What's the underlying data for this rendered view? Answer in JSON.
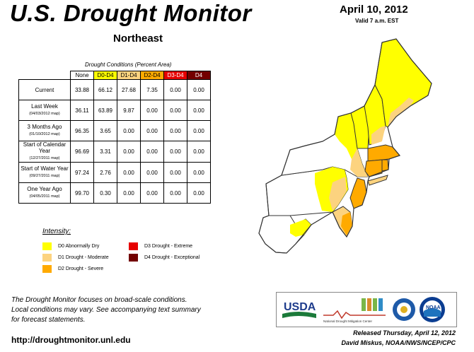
{
  "header": {
    "title": "U.S. Drought Monitor",
    "region": "Northeast",
    "date": "April 10, 2012",
    "valid": "Valid 7 a.m. EST"
  },
  "table": {
    "caption": "Drought Conditions (Percent Area)",
    "columns": [
      "None",
      "D0-D4",
      "D1-D4",
      "D2-D4",
      "D3-D4",
      "D4"
    ],
    "column_colors": [
      "#ffffff",
      "#ffff00",
      "#fcd37f",
      "#ffaa00",
      "#e60000",
      "#730000"
    ],
    "rows": [
      {
        "label": "Current",
        "sub": "",
        "values": [
          "33.88",
          "66.12",
          "27.68",
          "7.35",
          "0.00",
          "0.00"
        ]
      },
      {
        "label": "Last Week",
        "sub": "(04/03/2012 map)",
        "values": [
          "36.11",
          "63.89",
          "9.87",
          "0.00",
          "0.00",
          "0.00"
        ]
      },
      {
        "label": "3 Months Ago",
        "sub": "(01/10/2012 map)",
        "values": [
          "96.35",
          "3.65",
          "0.00",
          "0.00",
          "0.00",
          "0.00"
        ]
      },
      {
        "label": "Start of Calendar Year",
        "sub": "(12/27/2011 map)",
        "values": [
          "96.69",
          "3.31",
          "0.00",
          "0.00",
          "0.00",
          "0.00"
        ]
      },
      {
        "label": "Start of Water Year",
        "sub": "(09/27/2011 map)",
        "values": [
          "97.24",
          "2.76",
          "0.00",
          "0.00",
          "0.00",
          "0.00"
        ]
      },
      {
        "label": "One Year Ago",
        "sub": "(04/05/2011 map)",
        "values": [
          "99.70",
          "0.30",
          "0.00",
          "0.00",
          "0.00",
          "0.00"
        ]
      }
    ]
  },
  "legend": {
    "title": "Intensity:",
    "items": [
      {
        "label": "D0 Abnormally Dry",
        "color": "#ffff00"
      },
      {
        "label": "D1 Drought - Moderate",
        "color": "#fcd37f"
      },
      {
        "label": "D2 Drought - Severe",
        "color": "#ffaa00"
      },
      {
        "label": "D3 Drought - Extreme",
        "color": "#e60000"
      },
      {
        "label": "D4 Drought - Exceptional",
        "color": "#730000"
      }
    ]
  },
  "note": {
    "line1": "The Drought Monitor focuses on broad-scale conditions.",
    "line2": "Local conditions may vary. See accompanying text summary",
    "line3": "for forecast statements."
  },
  "footer": {
    "url": "http://droughtmonitor.unl.edu",
    "released": "Released Thursday, April 12, 2012",
    "author": "David Miskus, NOAA/NWS/NCEP/CPC"
  },
  "logos": {
    "usda": "USDA",
    "ndmc": "National Drought Mitigation Center",
    "doc_icon": "department-of-commerce-seal",
    "noaa": "NOAA"
  }
}
